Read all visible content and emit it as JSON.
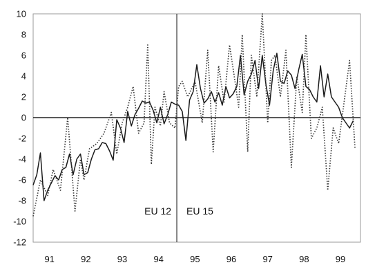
{
  "chart_data": {
    "type": "line",
    "title": "",
    "xlabel": "",
    "ylabel": "",
    "xlim": [
      1990.55,
      1999.55
    ],
    "ylim": [
      -12,
      10
    ],
    "y_ticks": [
      10,
      8,
      6,
      4,
      2,
      0,
      -2,
      -4,
      -6,
      -8,
      -10,
      -12
    ],
    "x_ticks": [
      {
        "label": "91",
        "x": 1991
      },
      {
        "label": "92",
        "x": 1992
      },
      {
        "label": "93",
        "x": 1993
      },
      {
        "label": "94",
        "x": 1994
      },
      {
        "label": "95",
        "x": 1995
      },
      {
        "label": "96",
        "x": 1996
      },
      {
        "label": "97",
        "x": 1997
      },
      {
        "label": "98",
        "x": 1998
      },
      {
        "label": "99",
        "x": 1999
      }
    ],
    "grid": false,
    "zero_line": true,
    "legend": "none",
    "annotations": [
      {
        "text": "EU 12",
        "side": "left",
        "x": 1994.5,
        "y": -9
      },
      {
        "text": "EU 15",
        "side": "right",
        "x": 1994.5,
        "y": -9
      }
    ],
    "divider_x": 1994.5,
    "series": [
      {
        "style": "solid",
        "color": "#1a1a1a",
        "x": [
          1990.55,
          1990.65,
          1990.75,
          1990.85,
          1990.95,
          1991.05,
          1991.15,
          1991.25,
          1991.35,
          1991.45,
          1991.55,
          1991.65,
          1991.75,
          1991.85,
          1991.95,
          1992.05,
          1992.15,
          1992.25,
          1992.35,
          1992.45,
          1992.55,
          1992.65,
          1992.75,
          1992.85,
          1992.95,
          1993.05,
          1993.15,
          1993.25,
          1993.35,
          1993.45,
          1993.55,
          1993.65,
          1993.75,
          1993.85,
          1993.95,
          1994.05,
          1994.15,
          1994.25,
          1994.35,
          1994.45,
          1994.55,
          1994.65,
          1994.75,
          1994.85,
          1994.95,
          1995.05,
          1995.15,
          1995.25,
          1995.35,
          1995.45,
          1995.55,
          1995.65,
          1995.75,
          1995.85,
          1995.95,
          1996.05,
          1996.15,
          1996.25,
          1996.35,
          1996.45,
          1996.55,
          1996.65,
          1996.75,
          1996.85,
          1996.95,
          1997.05,
          1997.15,
          1997.25,
          1997.35,
          1997.45,
          1997.55,
          1997.65,
          1997.75,
          1997.85,
          1997.95,
          1998.05,
          1998.15,
          1998.25,
          1998.35,
          1998.45,
          1998.55,
          1998.65,
          1998.75,
          1998.85,
          1998.95,
          1999.05,
          1999.15,
          1999.25,
          1999.35
        ],
        "y": [
          -6.5,
          -5.5,
          -3.4,
          -8.0,
          -7.0,
          -6.3,
          -5.6,
          -6.0,
          -5.0,
          -4.8,
          -3.5,
          -5.5,
          -4.0,
          -3.5,
          -5.5,
          -5.3,
          -4.0,
          -3.1,
          -3.0,
          -2.4,
          -2.5,
          -3.2,
          -4.1,
          -0.2,
          -1.0,
          -2.4,
          0.6,
          -0.8,
          0.3,
          0.9,
          1.6,
          1.4,
          1.5,
          0.7,
          -0.5,
          1.0,
          -0.6,
          0.3,
          1.5,
          1.3,
          1.2,
          0.6,
          -2.2,
          1.7,
          2.5,
          5.1,
          2.8,
          1.4,
          1.8,
          2.5,
          1.5,
          2.4,
          1.2,
          3.0,
          1.9,
          2.3,
          3.0,
          6.0,
          2.2,
          3.5,
          4.2,
          5.5,
          2.8,
          6.0,
          3.2,
          1.2,
          4.5,
          6.2,
          3.5,
          3.3,
          4.5,
          4.1,
          2.8,
          4.6,
          6.1,
          3.0,
          2.7,
          2.0,
          1.5,
          5.0,
          2.0,
          4.2,
          2.0,
          1.5,
          1.0,
          0.0,
          -0.5,
          -1.0,
          -0.3
        ]
      },
      {
        "style": "dotted",
        "color": "#3a3a3a",
        "x": [
          1990.55,
          1990.75,
          1990.95,
          1991.1,
          1991.3,
          1991.5,
          1991.7,
          1991.85,
          1991.95,
          1992.1,
          1992.3,
          1992.5,
          1992.7,
          1992.85,
          1993.0,
          1993.15,
          1993.3,
          1993.45,
          1993.6,
          1993.7,
          1993.8,
          1993.9,
          1994.05,
          1994.15,
          1994.3,
          1994.45,
          1994.55,
          1994.65,
          1994.8,
          1995.0,
          1995.2,
          1995.35,
          1995.5,
          1995.65,
          1995.8,
          1995.95,
          1996.1,
          1996.2,
          1996.3,
          1996.45,
          1996.55,
          1996.7,
          1996.85,
          1997.0,
          1997.1,
          1997.2,
          1997.35,
          1997.5,
          1997.65,
          1997.8,
          1997.95,
          1998.05,
          1998.2,
          1998.35,
          1998.5,
          1998.65,
          1998.8,
          1998.95,
          1999.1,
          1999.25,
          1999.4
        ],
        "y": [
          -9.5,
          -6.0,
          -7.5,
          -5.0,
          -7.0,
          0.0,
          -9.0,
          -4.0,
          -6.0,
          -3.0,
          -2.5,
          -1.5,
          0.5,
          -3.5,
          -0.5,
          1.0,
          3.0,
          -1.5,
          -0.5,
          7.0,
          -4.5,
          1.0,
          -0.8,
          2.5,
          -0.5,
          -1.0,
          3.0,
          3.5,
          2.0,
          3.5,
          -0.5,
          6.5,
          -3.3,
          5.0,
          1.5,
          7.0,
          3.5,
          1.0,
          8.0,
          -3.3,
          6.0,
          2.0,
          10.0,
          -0.5,
          5.5,
          6.0,
          2.0,
          6.5,
          -4.8,
          4.0,
          0.5,
          8.0,
          -2.0,
          -1.0,
          1.0,
          -7.0,
          -1.0,
          -2.5,
          1.5,
          5.5,
          -3.0
        ]
      }
    ]
  }
}
